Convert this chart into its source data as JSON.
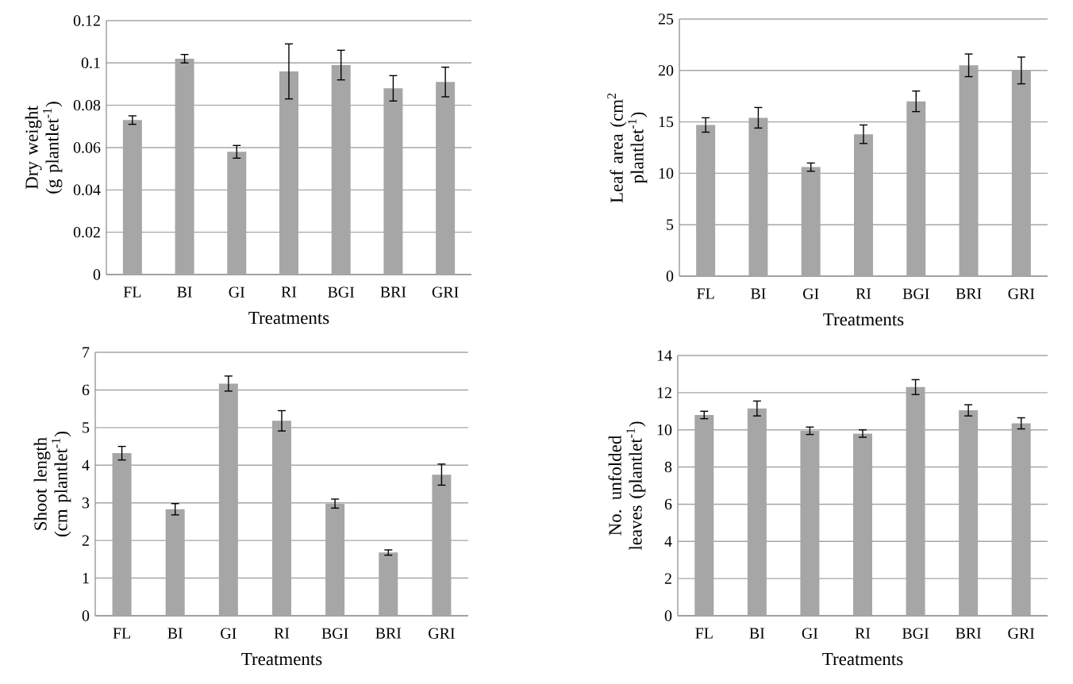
{
  "chart_data": [
    {
      "type": "bar",
      "ylabel": "Dry weight (g plantlet$^{-1}$)",
      "xlabel": "Treatments",
      "categories": [
        "FL",
        "BI",
        "GI",
        "RI",
        "BGI",
        "BRI",
        "GRI"
      ],
      "values": [
        0.073,
        0.102,
        0.058,
        0.096,
        0.099,
        0.088,
        0.091
      ],
      "errors": [
        0.002,
        0.002,
        0.003,
        0.013,
        0.007,
        0.006,
        0.007
      ],
      "color": "#a6a6a6",
      "ylim": [
        0,
        0.12
      ],
      "yticks": [
        0,
        0.02,
        0.04,
        0.06,
        0.08,
        0.1,
        0.12
      ],
      "grid": "y"
    },
    {
      "type": "bar",
      "ylabel": "Leaf area (cm$^{2}$ plantlet$^{-1}$)",
      "xlabel": "Treatments",
      "categories": [
        "FL",
        "BI",
        "GI",
        "RI",
        "BGI",
        "BRI",
        "GRI"
      ],
      "values": [
        14.7,
        15.4,
        10.6,
        13.8,
        17.0,
        20.5,
        20.0
      ],
      "errors": [
        0.7,
        1.0,
        0.4,
        0.9,
        1.0,
        1.1,
        1.3
      ],
      "color": "#a6a6a6",
      "ylim": [
        0,
        25
      ],
      "yticks": [
        0,
        5,
        10,
        15,
        20,
        25
      ],
      "grid": "y"
    },
    {
      "type": "bar",
      "ylabel": "Shoot length (cm plantlet$^{-1}$)",
      "xlabel": "Treatments",
      "categories": [
        "FL",
        "BI",
        "GI",
        "RI",
        "BGI",
        "BRI",
        "GRI"
      ],
      "values": [
        4.32,
        2.83,
        6.17,
        5.18,
        2.98,
        1.68,
        3.75
      ],
      "errors": [
        0.18,
        0.15,
        0.2,
        0.27,
        0.12,
        0.07,
        0.28
      ],
      "color": "#a6a6a6",
      "ylim": [
        0,
        7
      ],
      "yticks": [
        0,
        1,
        2,
        3,
        4,
        5,
        6,
        7
      ],
      "grid": "y"
    },
    {
      "type": "bar",
      "ylabel": "No. unfolded leaves (plantlet$^{-1}$)",
      "xlabel": "Treatments",
      "categories": [
        "FL",
        "BI",
        "GI",
        "RI",
        "BGI",
        "BRI",
        "GRI"
      ],
      "values": [
        10.8,
        11.15,
        9.95,
        9.8,
        12.3,
        11.05,
        10.35
      ],
      "errors": [
        0.2,
        0.4,
        0.2,
        0.2,
        0.4,
        0.3,
        0.3
      ],
      "color": "#a6a6a6",
      "ylim": [
        0,
        14
      ],
      "yticks": [
        0,
        2,
        4,
        6,
        8,
        10,
        12,
        14
      ],
      "grid": "y"
    }
  ]
}
